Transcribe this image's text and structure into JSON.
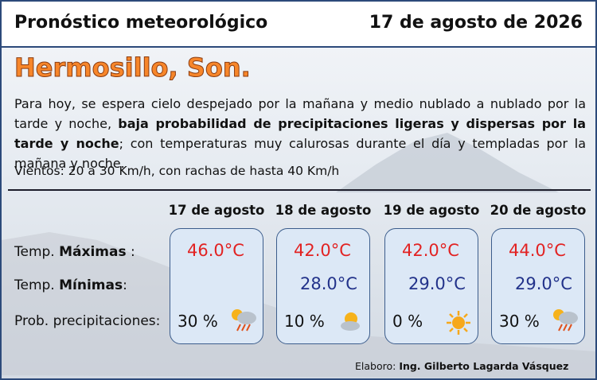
{
  "header": {
    "title": "Pronóstico meteorológico",
    "date": "17 de agosto de 2026"
  },
  "city": "Hermosillo, Son.",
  "description": {
    "before": "Para hoy, se espera cielo despejado por la mañana y medio nublado a nublado por la tarde y noche, ",
    "bold": "baja probabilidad de precipitaciones ligeras y dispersas por la tarde y noche",
    "after": "; con temperaturas muy calurosas durante el día y templadas por la mañana y noche."
  },
  "winds": "Vientos: 20 a 30 Km/h, con rachas de hasta 40 Km/h",
  "row_labels": [
    {
      "prefix": "Temp. ",
      "bold": "Máximas",
      "suffix": " :"
    },
    {
      "prefix": "Temp. ",
      "bold": "Mínimas",
      "suffix": ":"
    },
    {
      "prefix": "Prob. precipitaciones:"
    }
  ],
  "days": [
    {
      "date": "17 de agosto",
      "max": "46.0°C",
      "min": null,
      "precip": "30 %"
    },
    {
      "date": "18 de agosto",
      "max": "42.0°C",
      "min": "28.0°C",
      "precip": "10 %"
    },
    {
      "date": "19 de agosto",
      "max": "42.0°C",
      "min": "29.0°C",
      "precip": "0 %"
    },
    {
      "date": "20 de agosto",
      "max": "44.0°C",
      "min": "29.0°C",
      "precip": "30 %"
    }
  ],
  "credit": {
    "prefix": "Elaboro: ",
    "bold": "Ing. Gilberto Lagarda Vásquez"
  }
}
